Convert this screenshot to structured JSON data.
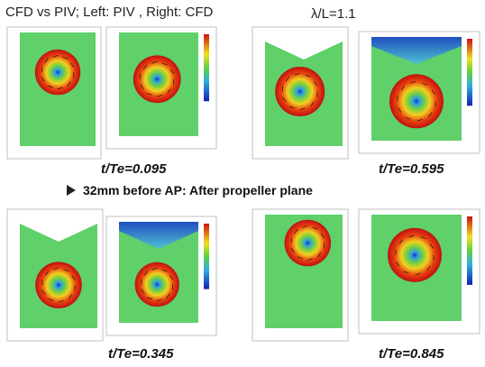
{
  "header": {
    "title": "CFD vs PIV; Left: PIV , Right: CFD",
    "condition": "λ/L=1.1"
  },
  "subtitle": "32mm before AP: After propeller plane",
  "panels": [
    {
      "caption": "t/Te=0.095"
    },
    {
      "caption": "t/Te=0.595"
    },
    {
      "caption": "t/Te=0.345"
    },
    {
      "caption": "t/Te=0.845"
    }
  ]
}
